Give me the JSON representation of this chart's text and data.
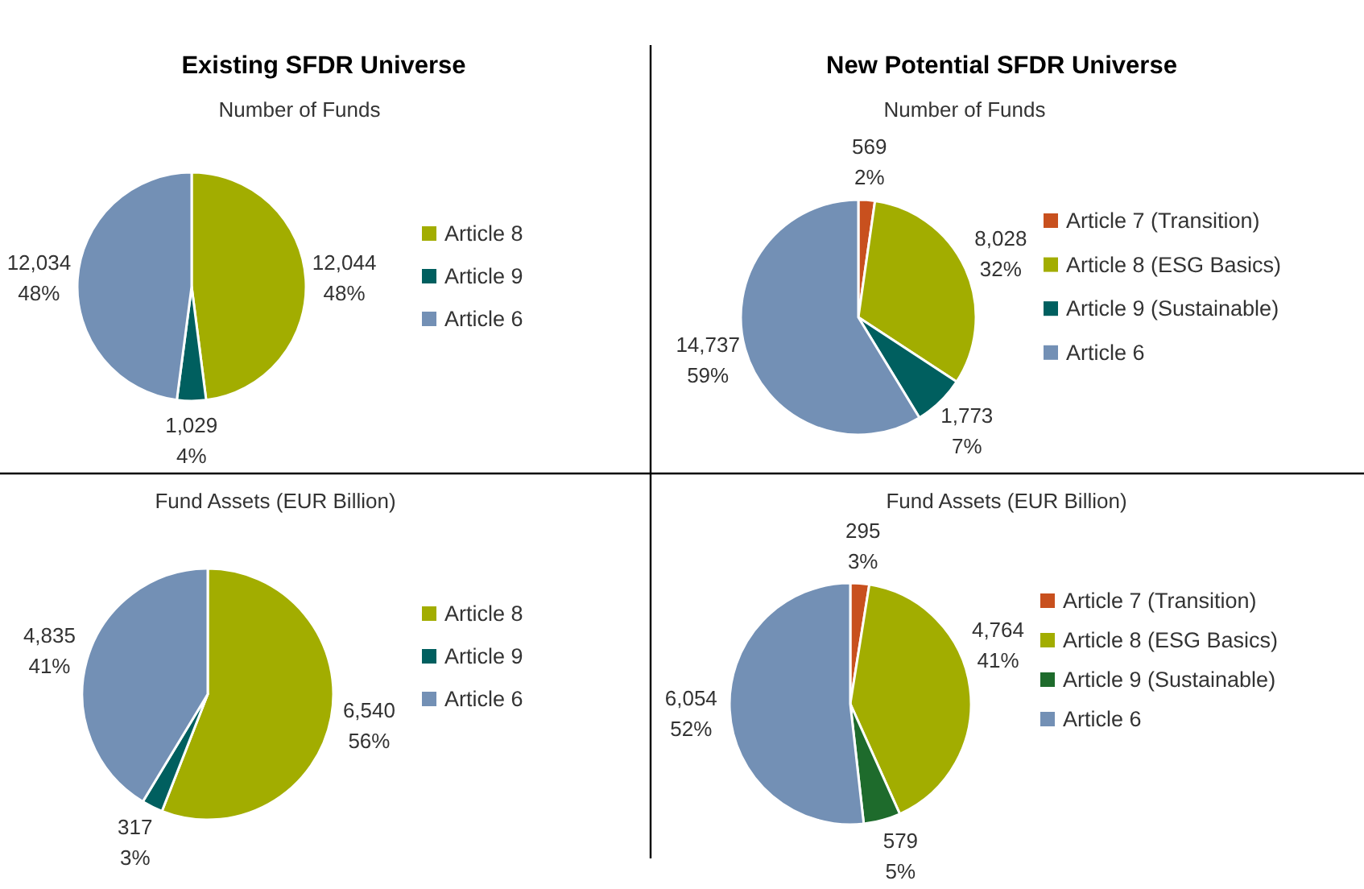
{
  "chart_data": [
    {
      "type": "pie",
      "title": "Existing SFDR Universe",
      "subtitle": "Number of Funds",
      "categories": [
        "Article 8",
        "Article 9",
        "Article 6"
      ],
      "values": [
        12044,
        1029,
        12034
      ],
      "colors": [
        "#a2ad00",
        "#005f5f",
        "#7390b5"
      ],
      "value_labels": [
        "12,044\n48%",
        "1,029\n4%",
        "12,034\n48%"
      ],
      "legend": "right"
    },
    {
      "type": "pie",
      "title": "New Potential SFDR Universe",
      "subtitle": "Number of Funds",
      "categories": [
        "Article 7 (Transition)",
        "Article 8 (ESG Basics)",
        "Article 9 (Sustainable)",
        "Article 6"
      ],
      "values": [
        569,
        8028,
        1773,
        14737
      ],
      "colors": [
        "#c8501e",
        "#a2ad00",
        "#005f5f",
        "#7390b5"
      ],
      "value_labels": [
        "569\n2%",
        "8,028\n32%",
        "1,773\n7%",
        "14,737\n59%"
      ],
      "legend": "right"
    },
    {
      "type": "pie",
      "subtitle": "Fund Assets (EUR Billion)",
      "categories": [
        "Article 8",
        "Article 9",
        "Article 6"
      ],
      "values": [
        6540,
        317,
        4835
      ],
      "colors": [
        "#a2ad00",
        "#005f5f",
        "#7390b5"
      ],
      "value_labels": [
        "6,540\n56%",
        "317\n3%",
        "4,835\n41%"
      ],
      "legend": "right"
    },
    {
      "type": "pie",
      "subtitle": "Fund Assets (EUR Billion)",
      "categories": [
        "Article 7 (Transition)",
        "Article 8 (ESG Basics)",
        "Article 9 (Sustainable)",
        "Article 6"
      ],
      "values": [
        295,
        4764,
        579,
        6054
      ],
      "colors": [
        "#c8501e",
        "#a2ad00",
        "#1e6b2c",
        "#7390b5"
      ],
      "value_labels": [
        "295\n3%",
        "4,764\n41%",
        "579\n5%",
        "6,054\n52%"
      ],
      "legend": "right"
    }
  ]
}
